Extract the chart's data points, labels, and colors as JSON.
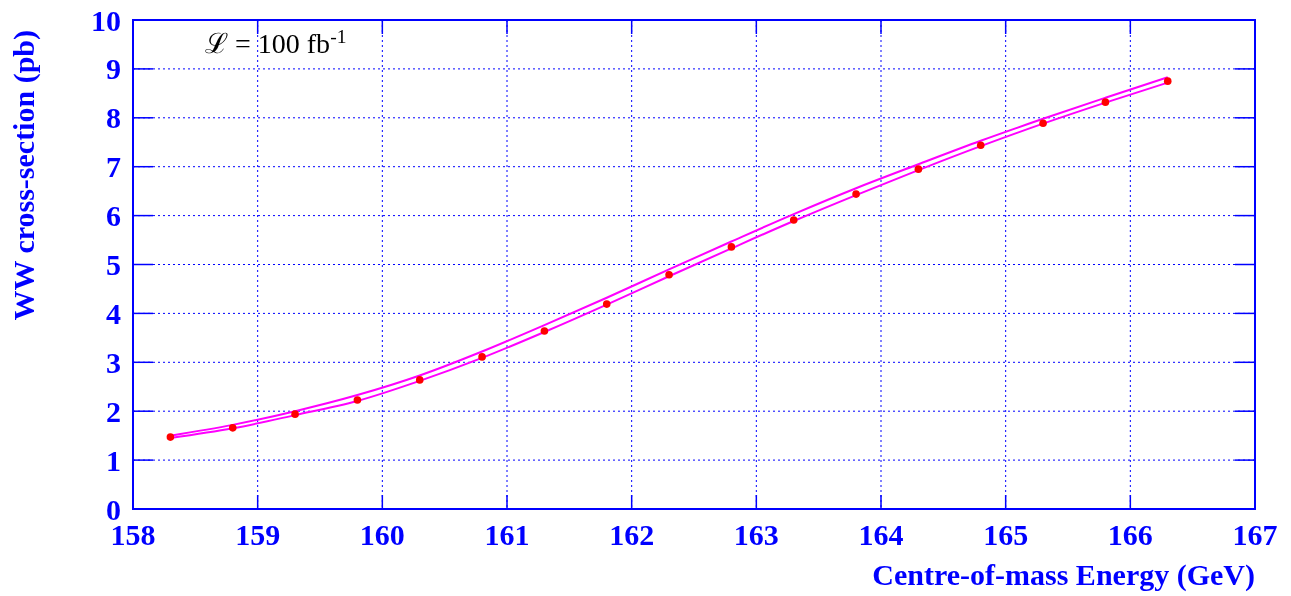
{
  "chart_data": {
    "type": "line",
    "xlabel": "Centre-of-mass Energy (GeV)",
    "ylabel": "WW cross-section (pb)",
    "annotations": [
      "ℒ = 100 fb$^{-1}$"
    ],
    "xlim": [
      158,
      167
    ],
    "ylim": [
      0,
      10
    ],
    "xticks": [
      158,
      159,
      160,
      161,
      162,
      163,
      164,
      165,
      166,
      167
    ],
    "yticks": [
      0,
      1,
      2,
      3,
      4,
      5,
      6,
      7,
      8,
      9,
      10
    ],
    "grid": true,
    "line_style": "solid",
    "series": [
      {
        "color": "#ff00ff",
        "marker": "none",
        "x": [
          158.3,
          158.8,
          159.3,
          159.8,
          160.3,
          160.8,
          161.3,
          161.8,
          162.3,
          162.8,
          163.3,
          163.8,
          164.3,
          164.8,
          165.3,
          165.8,
          166.3
        ],
        "values": [
          1.5,
          1.72,
          2.0,
          2.33,
          2.73,
          3.22,
          3.76,
          4.32,
          4.9,
          5.47,
          6.03,
          6.56,
          7.05,
          7.53,
          7.98,
          8.41,
          8.83
        ]
      },
      {
        "color": "#ff00ff",
        "marker": "none",
        "x": [
          158.3,
          158.8,
          159.3,
          159.8,
          160.3,
          160.8,
          161.3,
          161.8,
          162.3,
          162.8,
          163.3,
          163.8,
          164.3,
          164.8,
          165.3,
          165.8,
          166.3
        ],
        "values": [
          1.45,
          1.65,
          1.92,
          2.21,
          2.62,
          3.09,
          3.62,
          4.18,
          4.76,
          5.33,
          5.89,
          6.42,
          6.93,
          7.42,
          7.88,
          8.31,
          8.72
        ]
      },
      {
        "type": "scatter",
        "color": "#ff0000",
        "marker": "circle",
        "x": [
          158.3,
          158.8,
          159.3,
          159.8,
          160.3,
          160.8,
          161.3,
          161.8,
          162.3,
          162.8,
          163.3,
          163.8,
          164.3,
          164.8,
          165.3,
          165.8,
          166.3
        ],
        "values": [
          1.47,
          1.66,
          1.94,
          2.23,
          2.64,
          3.11,
          3.64,
          4.19,
          4.79,
          5.36,
          5.91,
          6.44,
          6.95,
          7.44,
          7.89,
          8.32,
          8.75
        ]
      }
    ]
  }
}
